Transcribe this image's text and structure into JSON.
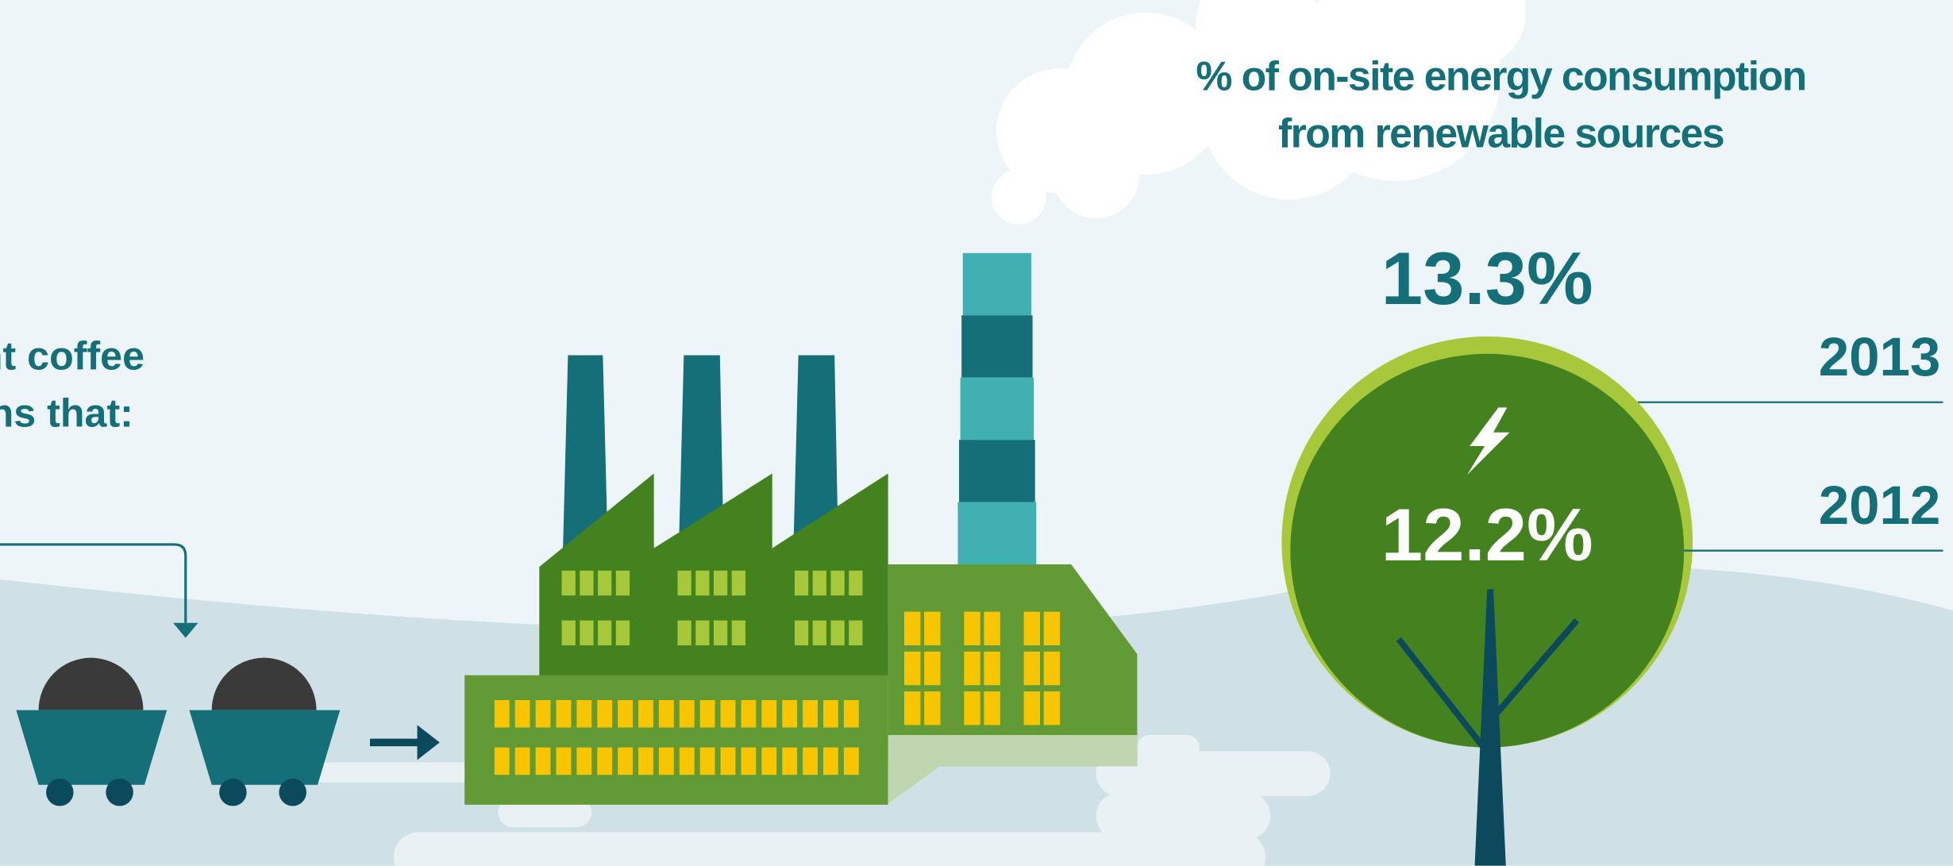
{
  "chart_data": {
    "type": "nested-circle",
    "title": "% of on-site energy consumption from renewable sources",
    "categories": [
      "2013",
      "2012"
    ],
    "values": [
      13.3,
      12.2
    ],
    "value_labels": [
      "13.3%",
      "12.2%"
    ],
    "colors": [
      "#a6c83a",
      "#43821f"
    ]
  },
  "side_note": {
    "lines": [
      "ent coffee",
      "ans that:"
    ]
  }
}
